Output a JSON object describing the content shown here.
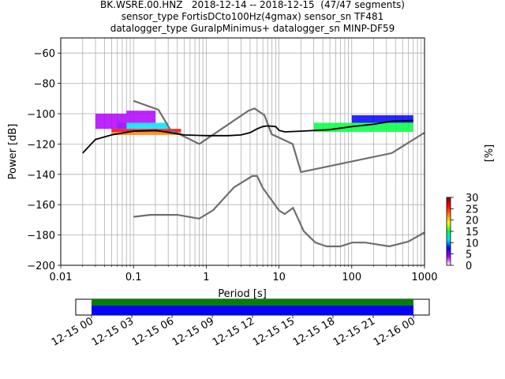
{
  "title_lines": [
    "BK.WSRE.00.HNZ   2018-12-14 -- 2018-12-15  (47/47 segments)",
    "sensor_type FortisDCto100Hz(4gmax) sensor_sn TF481",
    "datalogger_type GuralpMinimus+ datalogger_sn MINP-DF59"
  ],
  "chart_data": {
    "type": "heatmap",
    "xlabel": "Period [s]",
    "ylabel": "Power [dB]",
    "x_scale": "log",
    "xlim": [
      0.01,
      1000
    ],
    "ylim": [
      -200,
      -50
    ],
    "x_ticks": [
      {
        "value": 0.01,
        "label": "0.01"
      },
      {
        "value": 0.1,
        "label": "0.1"
      },
      {
        "value": 1,
        "label": "1"
      },
      {
        "value": 10,
        "label": "10"
      },
      {
        "value": 100,
        "label": "100"
      },
      {
        "value": 1000,
        "label": "1000"
      }
    ],
    "y_ticks": [
      -60,
      -80,
      -100,
      -120,
      -140,
      -160,
      -180,
      -200
    ],
    "grid": true,
    "colorbar": {
      "label": "[%]",
      "range": [
        0,
        30
      ],
      "ticks": [
        0,
        5,
        10,
        15,
        20,
        25,
        30
      ],
      "colormap": [
        "#ffffff",
        "#b000ff",
        "#0000ff",
        "#00e0ff",
        "#00ff40",
        "#ffff00",
        "#ff8000",
        "#ff0000",
        "#800000"
      ]
    },
    "noise_models": [
      {
        "name": "NHNM",
        "period": [
          0.1,
          0.22,
          0.32,
          0.8,
          3.8,
          4.6,
          6.3,
          7.9,
          15.4,
          20,
          354.8,
          1000
        ],
        "power": [
          -91.5,
          -97.4,
          -110.5,
          -120,
          -98,
          -96.5,
          -101,
          -113.5,
          -120,
          -138.5,
          -126,
          -112.5
        ]
      },
      {
        "name": "NLNM",
        "period": [
          0.1,
          0.17,
          0.4,
          0.8,
          1.24,
          2.4,
          4.3,
          5,
          6,
          10,
          12,
          15.6,
          21.9,
          31.6,
          45,
          70,
          101,
          154,
          328,
          600,
          1000
        ],
        "power": [
          -168,
          -166.7,
          -166.7,
          -169.2,
          -163.7,
          -148.6,
          -141.1,
          -141.1,
          -149,
          -163.8,
          -166.2,
          -162.1,
          -177.5,
          -185,
          -187.5,
          -187.5,
          -185,
          -185,
          -187.5,
          -184.4,
          -178.3
        ]
      }
    ],
    "mode": {
      "period": [
        0.02,
        0.025,
        0.03,
        0.05,
        0.1,
        0.2,
        0.5,
        1,
        2,
        3,
        4,
        5,
        6,
        7,
        9,
        10,
        12,
        20,
        50,
        100,
        200,
        350,
        700
      ],
      "power": [
        -126,
        -121,
        -117,
        -114,
        -111.5,
        -111,
        -114,
        -114.5,
        -114.5,
        -114,
        -112.5,
        -110,
        -108.5,
        -108,
        -108.5,
        -111,
        -112,
        -111.5,
        -110.5,
        -108.5,
        -107,
        -105,
        -104.5
      ]
    },
    "ppsd_bands": [
      {
        "period": [
          0.05,
          0.45
        ],
        "power": [
          -114,
          -112
        ],
        "percent": 20
      },
      {
        "period": [
          0.05,
          0.45
        ],
        "power": [
          -112,
          -110
        ],
        "percent": 25
      },
      {
        "period": [
          0.06,
          0.3
        ],
        "power": [
          -110,
          -106
        ],
        "percent": 8
      },
      {
        "period": [
          0.08,
          0.2
        ],
        "power": [
          -106,
          -98
        ],
        "percent": 3
      },
      {
        "period": [
          0.03,
          0.08
        ],
        "power": [
          -110,
          -100
        ],
        "percent": 2
      },
      {
        "period": [
          30,
          700
        ],
        "power": [
          -112,
          -106
        ],
        "percent": 12
      },
      {
        "period": [
          100,
          700
        ],
        "power": [
          -106,
          -101
        ],
        "percent": 5
      }
    ],
    "time_coverage": {
      "ticks": [
        "12-15 00",
        "12-15 03",
        "12-15 06",
        "12-15 09",
        "12-15 12",
        "12-15 15",
        "12-15 18",
        "12-15 21",
        "12-16 00"
      ],
      "start_fraction": 0.0,
      "end_fraction": 1.0,
      "colors": {
        "data": "#0000ff",
        "gap_check": "#008000"
      }
    }
  }
}
